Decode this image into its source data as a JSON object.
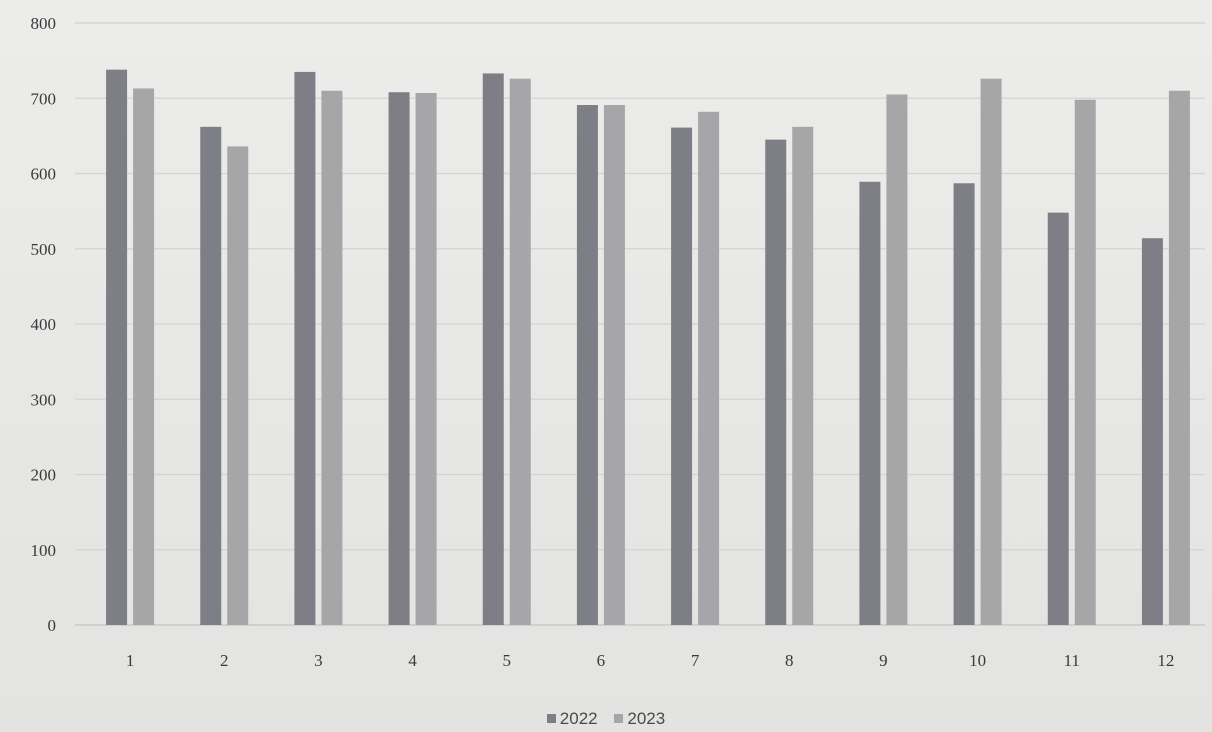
{
  "chart_data": {
    "type": "bar",
    "title": "",
    "xlabel": "",
    "ylabel": "",
    "categories": [
      "1",
      "2",
      "3",
      "4",
      "5",
      "6",
      "7",
      "8",
      "9",
      "10",
      "11",
      "12"
    ],
    "series": [
      {
        "name": "2022",
        "color": "#7e7e86",
        "values": [
          738,
          662,
          735,
          708,
          733,
          691,
          661,
          645,
          589,
          587,
          548,
          514
        ]
      },
      {
        "name": "2023",
        "color": "#a6a6a8",
        "values": [
          713,
          636,
          710,
          707,
          726,
          691,
          682,
          662,
          705,
          726,
          698,
          710
        ]
      }
    ],
    "y_ticks": [
      0,
      100,
      200,
      300,
      400,
      500,
      600,
      700,
      800
    ],
    "ylim": [
      0,
      800
    ],
    "grid": true,
    "legend_position": "bottom"
  }
}
